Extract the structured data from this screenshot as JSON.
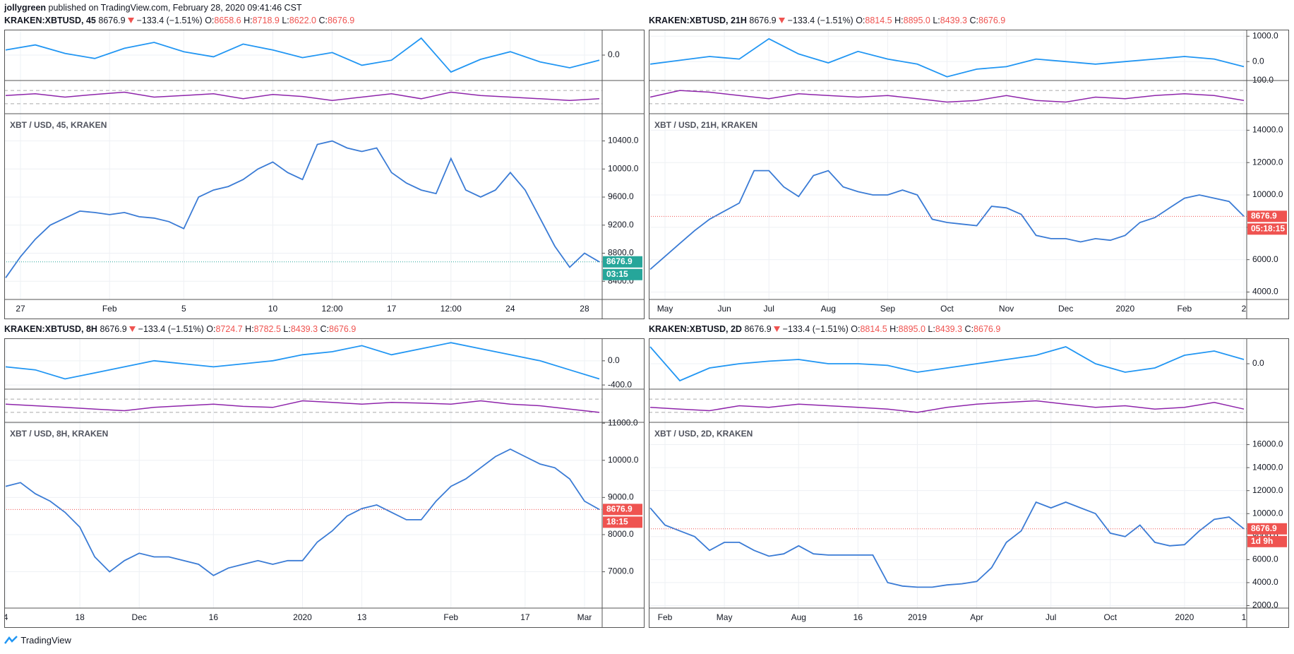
{
  "header": {
    "author": "jollygreen",
    "published": "published on TradingView.com, February 28, 2020 09:41:46 CST"
  },
  "footer": {
    "brand": "TradingView"
  },
  "chart_data": [
    {
      "type": "line",
      "symbol": "KRAKEN:XBTUSD, 45",
      "price": "8676.9",
      "change": "−133.4 (−1.51%)",
      "ohlc": [
        {
          "label": "O:",
          "value": "8658.6"
        },
        {
          "label": "H:",
          "value": "8718.9"
        },
        {
          "label": "L:",
          "value": "8622.0"
        },
        {
          "label": "C:",
          "value": "8676.9"
        }
      ],
      "title": "XBT / USD, 45, KRAKEN",
      "color": "#3a7bd5",
      "tag_color": "#26a69a",
      "price_label": "8676.9",
      "timer": "03:15",
      "categories": [
        null,
        "27",
        null,
        null,
        null,
        null,
        null,
        "Feb",
        null,
        null,
        null,
        null,
        "5",
        null,
        null,
        null,
        null,
        null,
        "10",
        null,
        null,
        null,
        "12:00",
        null,
        null,
        null,
        "17",
        null,
        null,
        null,
        "12:00",
        null,
        null,
        null,
        "24",
        null,
        null,
        null,
        null,
        "28",
        null
      ],
      "values": [
        8450,
        8750,
        9000,
        9200,
        9300,
        9400,
        9380,
        9350,
        9380,
        9320,
        9300,
        9250,
        9150,
        9600,
        9700,
        9750,
        9850,
        10000,
        10100,
        9950,
        9850,
        10350,
        10400,
        10300,
        10250,
        10300,
        9950,
        9800,
        9700,
        9650,
        10150,
        9700,
        9600,
        9700,
        9950,
        9700,
        9300,
        8900,
        8600,
        8800,
        8676.9
      ],
      "ylim": [
        8141,
        10788
      ],
      "yticks": [
        {
          "value": 8400,
          "label": "8400.0"
        },
        {
          "value": 8800,
          "label": "8800.0"
        },
        {
          "value": 9200,
          "label": "9200.0"
        },
        {
          "value": 9600,
          "label": "9600.0"
        },
        {
          "value": 10000,
          "label": "10000.0"
        },
        {
          "value": 10400,
          "label": "10400.0"
        }
      ],
      "macd": {
        "ylim": [
          -300,
          300
        ],
        "yticks": [
          {
            "value": 0,
            "label": "0.0"
          }
        ],
        "values": [
          60,
          120,
          20,
          -40,
          80,
          150,
          40,
          -20,
          130,
          60,
          -30,
          30,
          -120,
          -60,
          200,
          -200,
          -50,
          40,
          -80,
          -150,
          -60
        ]
      },
      "rsi": {
        "ylim": [
          0,
          100
        ],
        "bands": [
          30,
          70
        ],
        "yticks": [],
        "values": [
          55,
          60,
          50,
          58,
          65,
          50,
          55,
          60,
          45,
          58,
          52,
          40,
          50,
          60,
          45,
          65,
          55,
          50,
          45,
          40,
          45
        ]
      }
    },
    {
      "type": "line",
      "symbol": "KRAKEN:XBTUSD, 21H",
      "price": "8676.9",
      "change": "−133.4 (−1.51%)",
      "ohlc": [
        {
          "label": "O:",
          "value": "8814.5"
        },
        {
          "label": "H:",
          "value": "8895.0"
        },
        {
          "label": "L:",
          "value": "8439.3"
        },
        {
          "label": "C:",
          "value": "8676.9"
        }
      ],
      "title": "XBT / USD, 21H, KRAKEN",
      "color": "#3a7bd5",
      "tag_color": "#ef5350",
      "price_label": "8676.9",
      "timer": "05:18:15",
      "categories": [
        null,
        "May",
        null,
        null,
        null,
        "Jun",
        null,
        null,
        "Jul",
        null,
        null,
        null,
        "Aug",
        null,
        null,
        null,
        "Sep",
        null,
        null,
        null,
        "Oct",
        null,
        null,
        null,
        "Nov",
        null,
        null,
        null,
        "Dec",
        null,
        null,
        null,
        "2020",
        null,
        null,
        null,
        "Feb",
        null,
        null,
        null,
        "2"
      ],
      "values": [
        5400,
        6200,
        7000,
        7800,
        8500,
        9000,
        9500,
        11500,
        11500,
        10500,
        9900,
        11200,
        11500,
        10500,
        10200,
        10000,
        10000,
        10300,
        10000,
        8500,
        8300,
        8200,
        8100,
        9300,
        9200,
        8800,
        7500,
        7300,
        7300,
        7100,
        7300,
        7200,
        7500,
        8300,
        8600,
        9200,
        9800,
        10000,
        9800,
        9600,
        8676.9
      ],
      "ylim": [
        3541,
        15020
      ],
      "yticks": [
        {
          "value": 4000,
          "label": "4000.0"
        },
        {
          "value": 6000,
          "label": "6000.0"
        },
        {
          "value": 8000,
          "label": "8000.0"
        },
        {
          "value": 10000,
          "label": "10000.0"
        },
        {
          "value": 12000,
          "label": "12000.0"
        },
        {
          "value": 14000,
          "label": "14000.0"
        }
      ],
      "macd": {
        "ylim": [
          -747,
          1258
        ],
        "yticks": [
          {
            "value": 0,
            "label": "0.0"
          },
          {
            "value": 1000,
            "label": "1000.0"
          }
        ],
        "values": [
          -100,
          50,
          200,
          100,
          900,
          300,
          -50,
          400,
          100,
          -100,
          -600,
          -300,
          -200,
          100,
          0,
          -100,
          0,
          100,
          200,
          100,
          -200
        ]
      },
      "rsi": {
        "ylim": [
          0,
          100
        ],
        "bands": [
          30,
          70
        ],
        "yticks": [
          {
            "value": 100,
            "label": "100.0"
          }
        ],
        "values": [
          50,
          70,
          65,
          55,
          45,
          60,
          55,
          50,
          55,
          45,
          35,
          40,
          55,
          40,
          35,
          50,
          45,
          55,
          60,
          55,
          40
        ]
      }
    },
    {
      "type": "line",
      "symbol": "KRAKEN:XBTUSD, 8H",
      "price": "8676.9",
      "change": "−133.4 (−1.51%)",
      "ohlc": [
        {
          "label": "O:",
          "value": "8724.7"
        },
        {
          "label": "H:",
          "value": "8782.5"
        },
        {
          "label": "L:",
          "value": "8439.3"
        },
        {
          "label": "C:",
          "value": "8676.9"
        }
      ],
      "title": "XBT / USD, 8H, KRAKEN",
      "color": "#3a7bd5",
      "tag_color": "#ef5350",
      "price_label": "8676.9",
      "timer": "18:15",
      "categories": [
        "4",
        null,
        null,
        null,
        null,
        "18",
        null,
        null,
        null,
        "Dec",
        null,
        null,
        null,
        null,
        "16",
        null,
        null,
        null,
        null,
        null,
        "2020",
        null,
        null,
        null,
        "13",
        null,
        null,
        null,
        null,
        null,
        "Feb",
        null,
        null,
        null,
        null,
        "17",
        null,
        null,
        null,
        "Mar",
        null
      ],
      "values": [
        9300,
        9400,
        9100,
        8900,
        8600,
        8200,
        7400,
        7000,
        7300,
        7500,
        7400,
        7400,
        7300,
        7200,
        6900,
        7100,
        7200,
        7300,
        7200,
        7300,
        7300,
        7800,
        8100,
        8500,
        8700,
        8800,
        8600,
        8400,
        8400,
        8900,
        9300,
        9500,
        9800,
        10100,
        10300,
        10100,
        9900,
        9800,
        9500,
        8900,
        8676.9
      ],
      "ylim": [
        6022,
        11022
      ],
      "yticks": [
        {
          "value": 7000,
          "label": "7000.0"
        },
        {
          "value": 8000,
          "label": "8000.0"
        },
        {
          "value": 9000,
          "label": "9000.0"
        },
        {
          "value": 10000,
          "label": "10000.0"
        },
        {
          "value": 11000,
          "label": "11000.0"
        }
      ],
      "macd": {
        "ylim": [
          -469,
          372
        ],
        "yticks": [
          {
            "value": 0,
            "label": "0.0"
          },
          {
            "value": -400,
            "label": "-400.0"
          }
        ],
        "values": [
          -100,
          -150,
          -300,
          -200,
          -100,
          0,
          -50,
          -100,
          -50,
          0,
          100,
          150,
          250,
          100,
          200,
          300,
          200,
          100,
          0,
          -150,
          -300
        ]
      },
      "rsi": {
        "ylim": [
          0,
          100
        ],
        "bands": [
          30,
          70
        ],
        "yticks": [],
        "values": [
          55,
          50,
          45,
          40,
          35,
          45,
          50,
          55,
          48,
          45,
          65,
          60,
          55,
          60,
          58,
          55,
          65,
          55,
          50,
          40,
          30
        ]
      }
    },
    {
      "type": "line",
      "symbol": "KRAKEN:XBTUSD, 2D",
      "price": "8676.9",
      "change": "−133.4 (−1.51%)",
      "ohlc": [
        {
          "label": "O:",
          "value": "8814.5"
        },
        {
          "label": "H:",
          "value": "8895.0"
        },
        {
          "label": "L:",
          "value": "8439.3"
        },
        {
          "label": "C:",
          "value": "8676.9"
        }
      ],
      "title": "XBT / USD, 2D, KRAKEN",
      "color": "#3a7bd5",
      "tag_color": "#ef5350",
      "price_label": "8676.9",
      "timer": "1d 9h",
      "categories": [
        null,
        "Feb",
        null,
        null,
        null,
        "May",
        null,
        null,
        null,
        null,
        "Aug",
        null,
        null,
        null,
        "16",
        null,
        null,
        null,
        "2019",
        null,
        null,
        null,
        "Apr",
        null,
        null,
        null,
        null,
        "Jul",
        null,
        null,
        null,
        "Oct",
        null,
        null,
        null,
        null,
        "2020",
        null,
        null,
        null,
        "1"
      ],
      "values": [
        10500,
        9000,
        8500,
        8000,
        6800,
        7500,
        7500,
        6800,
        6300,
        6500,
        7200,
        6500,
        6400,
        6400,
        6400,
        6400,
        4000,
        3700,
        3600,
        3600,
        3800,
        3900,
        4100,
        5300,
        7500,
        8500,
        11000,
        10500,
        11000,
        10500,
        10000,
        8300,
        8000,
        9000,
        7500,
        7200,
        7300,
        8500,
        9500,
        9700,
        8676.9
      ],
      "ylim": [
        1785,
        17938
      ],
      "yticks": [
        {
          "value": 2000,
          "label": "2000.0"
        },
        {
          "value": 4000,
          "label": "4000.0"
        },
        {
          "value": 6000,
          "label": "6000.0"
        },
        {
          "value": 8000,
          "label": "8000.0"
        },
        {
          "value": 10000,
          "label": "10000.0"
        },
        {
          "value": 12000,
          "label": "12000.0"
        },
        {
          "value": 14000,
          "label": "14000.0"
        },
        {
          "value": 16000,
          "label": "16000.0"
        }
      ],
      "macd": {
        "ylim": [
          -300,
          300
        ],
        "yticks": [
          {
            "value": 0,
            "label": "0.0"
          }
        ],
        "values": [
          200,
          -200,
          -50,
          0,
          30,
          50,
          0,
          0,
          -20,
          -100,
          -50,
          0,
          50,
          100,
          200,
          0,
          -100,
          -50,
          100,
          150,
          50
        ]
      },
      "rsi": {
        "ylim": [
          0,
          100
        ],
        "bands": [
          30,
          70
        ],
        "yticks": [],
        "values": [
          45,
          40,
          35,
          50,
          45,
          55,
          50,
          45,
          40,
          30,
          45,
          55,
          60,
          65,
          55,
          45,
          50,
          40,
          45,
          60,
          40
        ]
      }
    }
  ]
}
